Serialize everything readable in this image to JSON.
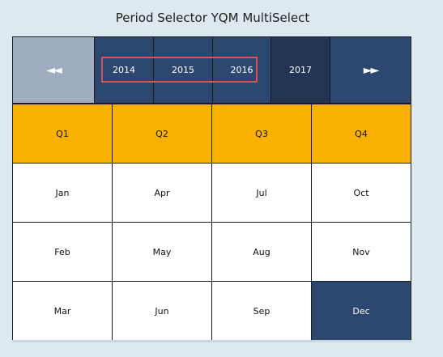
{
  "title": "Period Selector YQM MultiSelect",
  "nav": {
    "prev_label": "◄◄",
    "next_label": "►►"
  },
  "years": [
    {
      "label": "2014",
      "selected": true
    },
    {
      "label": "2015",
      "selected": true
    },
    {
      "label": "2016",
      "selected": true
    },
    {
      "label": "2017",
      "selected": false
    }
  ],
  "quarters": [
    "Q1",
    "Q2",
    "Q3",
    "Q4"
  ],
  "months": {
    "q1": [
      "Jan",
      "Feb",
      "Mar"
    ],
    "q2": [
      "Apr",
      "May",
      "Jun"
    ],
    "q3": [
      "Jul",
      "Aug",
      "Sep"
    ],
    "q4": [
      "Oct",
      "Nov",
      "Dec"
    ]
  },
  "colors": {
    "nav_prev_bg": "#a0adc0",
    "year_bg": "#2c4870",
    "year_current_bg": "#243455",
    "quarter_bg": "#f9b100",
    "month_bg": "#ffffff",
    "month_selected_bg": "#2c4870",
    "highlight_border": "#e05252"
  },
  "selected_month": "Dec"
}
